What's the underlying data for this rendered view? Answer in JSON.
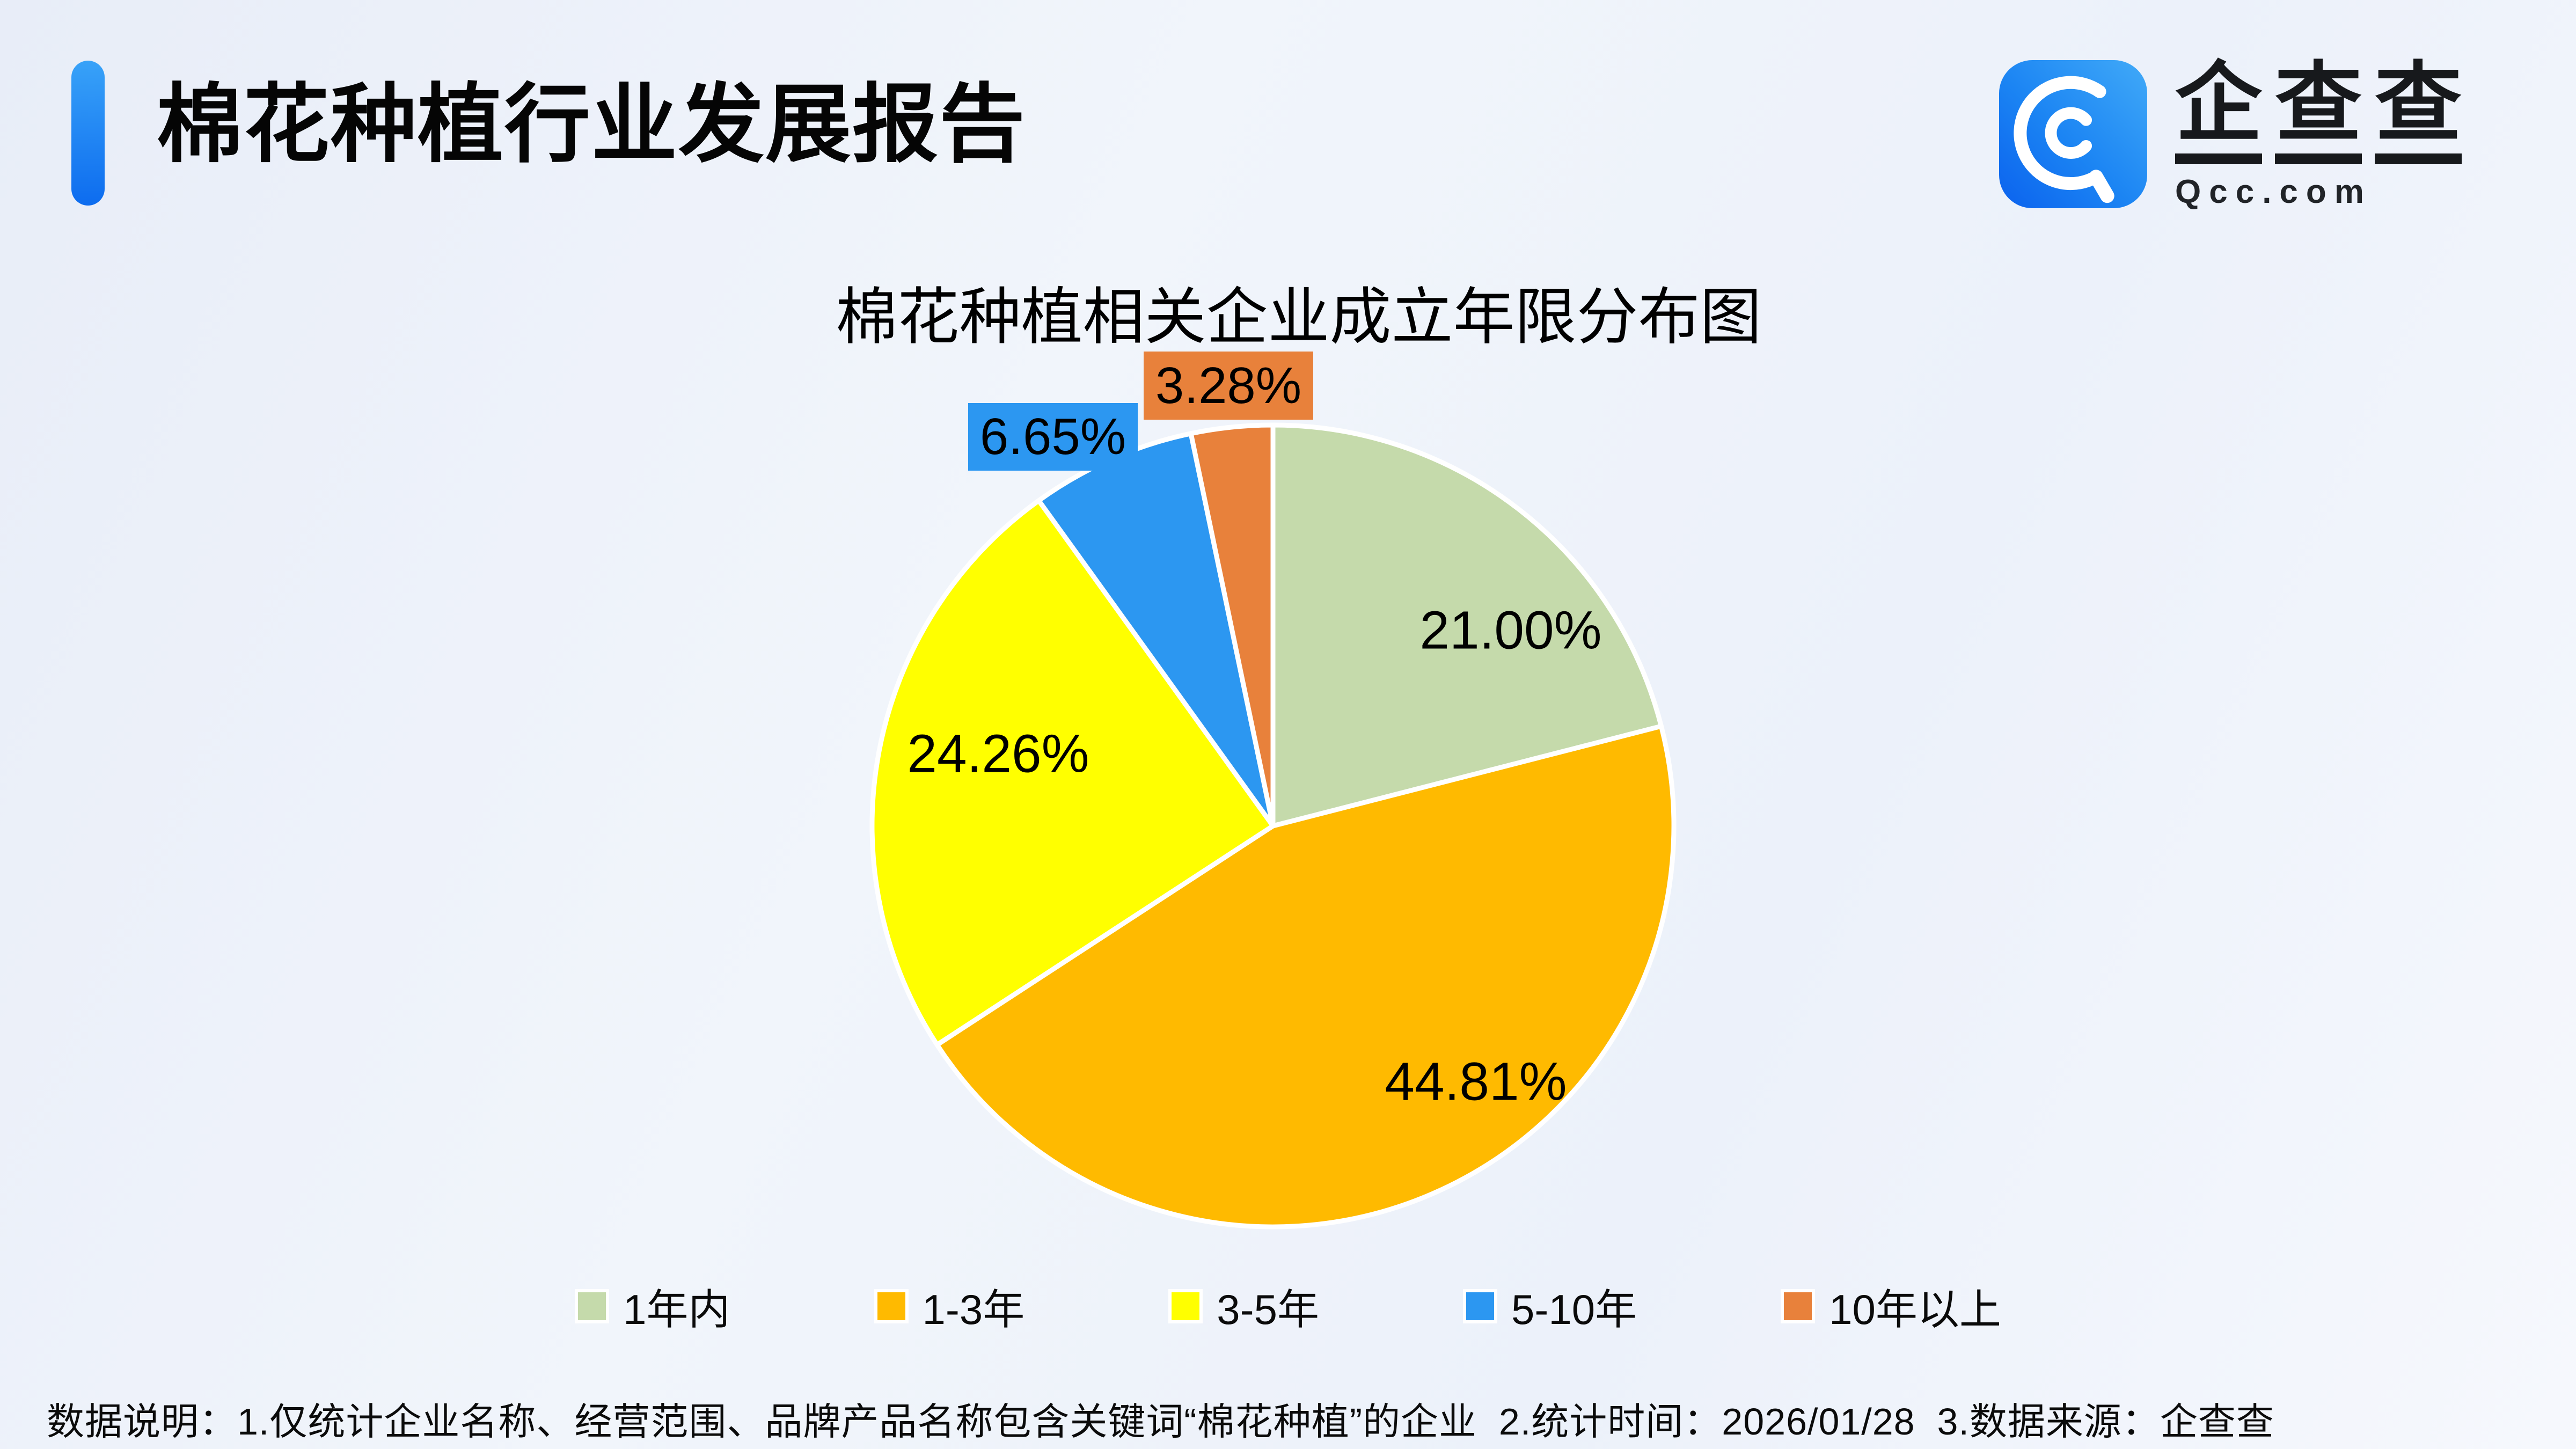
{
  "header": {
    "title": "棉花种植行业发展报告",
    "accent_color": "#1778F2"
  },
  "logo": {
    "chars": [
      "企",
      "查",
      "查"
    ],
    "domain": "Qcc.com",
    "brand_blue": "#1586F2"
  },
  "chart_data": {
    "type": "pie",
    "title": "棉花种植相关企业成立年限分布图",
    "categories": [
      "1年内",
      "1-3年",
      "3-5年",
      "5-10年",
      "10年以上"
    ],
    "values": [
      21.0,
      44.81,
      24.26,
      6.65,
      3.28
    ],
    "labels": [
      "21.00%",
      "44.81%",
      "24.26%",
      "6.65%",
      "3.28%"
    ],
    "colors": [
      "#C5DAAB",
      "#FFBA00",
      "#FFFF00",
      "#2C97F1",
      "#E8813B"
    ],
    "start_angle": "12-o'clock",
    "direction": "clockwise",
    "slice_border_color": "#FFFFFF",
    "legend_position": "bottom"
  },
  "footer": {
    "note": "数据说明：1.仅统计企业名称、经营范围、品牌产品名称包含关键词“棉花种植”的企业  2.统计时间：2026/01/28  3.数据来源：企查查"
  }
}
